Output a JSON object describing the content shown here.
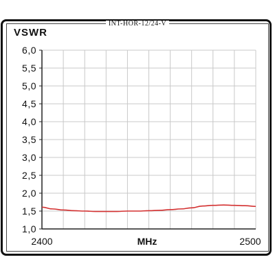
{
  "header": {
    "model": "INT-HOR-12/24-V"
  },
  "colors": {
    "curve": "#d32f2f",
    "grid": "#c8c8c8",
    "axis": "#222222",
    "frame": "#111111"
  },
  "chart_data": {
    "type": "line",
    "title": "",
    "xlabel": "MHz",
    "ylabel": "VSWR",
    "xlim": [
      2400,
      2500
    ],
    "ylim": [
      1.0,
      6.0
    ],
    "x_tick_labels": [
      "2400",
      "2500"
    ],
    "y_tick_labels": [
      "1,0",
      "1,5",
      "2,0",
      "2,5",
      "3,0",
      "3,5",
      "4,0",
      "4,5",
      "5,0",
      "5,5",
      "6,0"
    ],
    "grid": true,
    "series": [
      {
        "color": "#d32f2f",
        "x": [
          2400,
          2405,
          2410,
          2415,
          2420,
          2425,
          2430,
          2435,
          2440,
          2445,
          2450,
          2455,
          2460,
          2465,
          2470,
          2475,
          2480,
          2485,
          2490,
          2495,
          2500
        ],
        "y": [
          1.61,
          1.56,
          1.53,
          1.51,
          1.5,
          1.49,
          1.49,
          1.49,
          1.5,
          1.5,
          1.51,
          1.52,
          1.54,
          1.56,
          1.59,
          1.64,
          1.66,
          1.67,
          1.66,
          1.65,
          1.63
        ]
      }
    ]
  }
}
